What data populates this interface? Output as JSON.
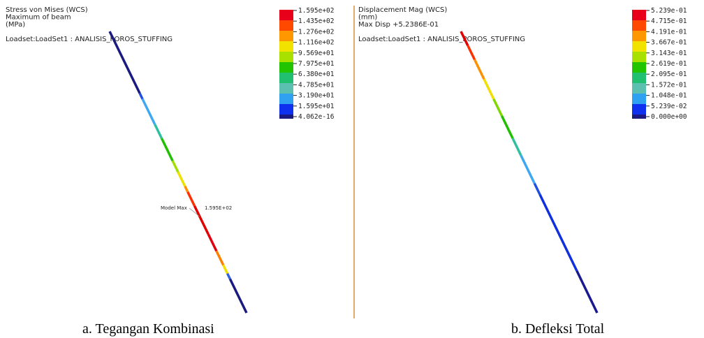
{
  "panels": [
    {
      "header": [
        "Stress von Mises (WCS)",
        "Maximum of beam",
        "(MPa)",
        "Loadset:LoadSet1 :   ANALISIS_POROS_STUFFING"
      ],
      "legend": [
        "1.595e+02",
        "1.435e+02",
        "1.276e+02",
        "1.116e+02",
        "9.569e+01",
        "7.975e+01",
        "6.380e+01",
        "4.785e+01",
        "3.190e+01",
        "1.595e+01",
        "4.062e-16"
      ],
      "annotation": [
        "Model Max",
        "1.595E+02"
      ],
      "caption": "a.  Tegangan Kombinasi"
    },
    {
      "header": [
        "Displacement Mag (WCS)",
        "(mm)",
        "Max Disp  +5.2386E-01",
        "Loadset:LoadSet1 :   ANALISIS_POROS_STUFFING"
      ],
      "legend": [
        "5.239e-01",
        "4.715e-01",
        "4.191e-01",
        "3.667e-01",
        "3.143e-01",
        "2.619e-01",
        "2.095e-01",
        "1.572e-01",
        "1.048e-01",
        "5.239e-02",
        "0.000e+00"
      ],
      "caption": "b. Defleksi Total"
    }
  ]
}
